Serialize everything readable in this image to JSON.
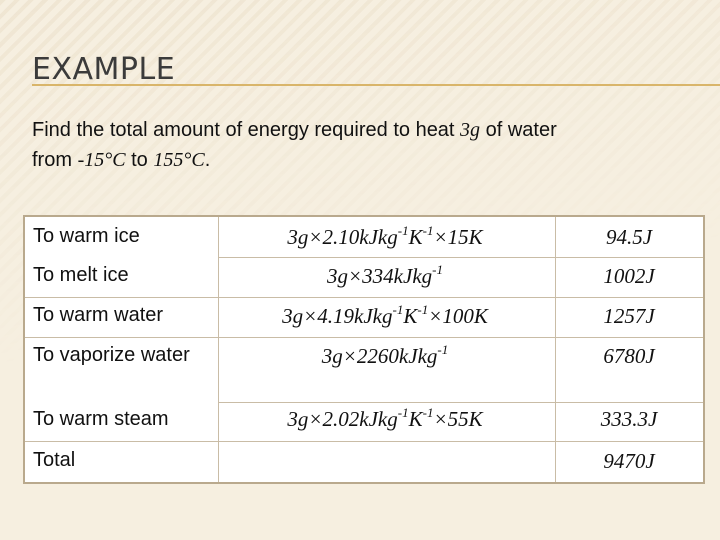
{
  "slide": {
    "title": "EXAMPLE",
    "problem": {
      "pre": "Find the total amount of energy required to heat ",
      "mass": "3g",
      "mid": " of water",
      "from_label": "from ",
      "t_start": "-15°C",
      "to_label": " to ",
      "t_end": "155°C",
      "end": "."
    }
  },
  "table": {
    "rows": [
      {
        "label": "To warm ice",
        "calc": [
          "3g×2.10kJkg",
          "-1",
          "K",
          "-1",
          "×15K"
        ],
        "result": "94.5J"
      },
      {
        "label": "To melt ice",
        "calc": [
          "3g×334kJkg",
          "-1"
        ],
        "result": "1002J"
      },
      {
        "label": "To warm water",
        "calc": [
          "3g×4.19kJkg",
          "-1",
          "K",
          "-1",
          "×100K"
        ],
        "result": "1257J"
      },
      {
        "label": "To vaporize water",
        "calc": [
          "3g×2260kJkg",
          "-1"
        ],
        "result": "6780J"
      },
      {
        "label": "To warm steam",
        "calc": [
          "3g×2.02kJkg",
          "-1",
          "K",
          "-1",
          "×55K"
        ],
        "result": "333.3J"
      },
      {
        "label": "Total",
        "calc": [],
        "result": "9470J"
      }
    ]
  }
}
